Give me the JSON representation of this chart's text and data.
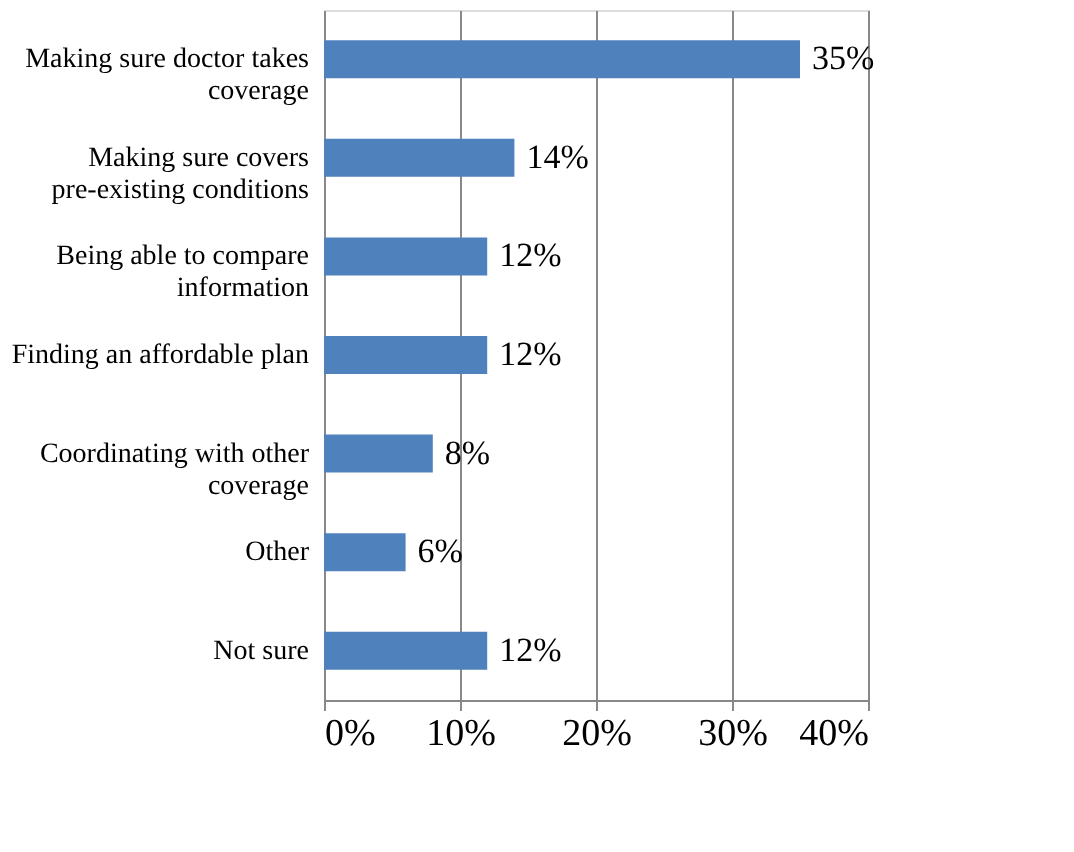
{
  "chart_data": {
    "type": "bar",
    "orientation": "horizontal",
    "categories": [
      "Making sure doctor takes coverage",
      "Making sure covers pre-existing conditions",
      "Being able to compare information",
      "Finding an affordable plan",
      "Coordinating with other coverage",
      "Other",
      "Not sure"
    ],
    "values": [
      35,
      14,
      12,
      12,
      8,
      6,
      12
    ],
    "value_labels": [
      "35%",
      "14%",
      "12%",
      "12%",
      "8%",
      "6%",
      "12%"
    ],
    "color": "#4f81bd",
    "xlim": [
      0,
      40
    ],
    "xticks": [
      {
        "value": 0,
        "label": "0%"
      },
      {
        "value": 10,
        "label": "10%"
      },
      {
        "value": 20,
        "label": "20%"
      },
      {
        "value": 30,
        "label": "30%"
      },
      {
        "value": 40,
        "label": "40%"
      }
    ],
    "grid": "x"
  }
}
